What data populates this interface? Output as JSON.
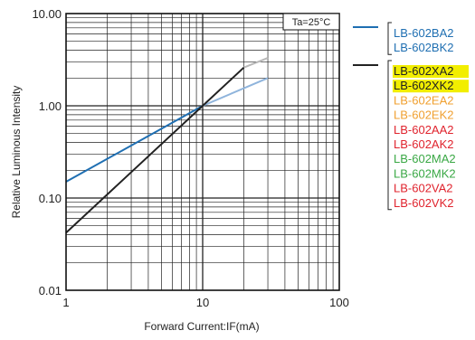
{
  "chart_data": {
    "type": "line",
    "x_scale": "log",
    "y_scale": "log",
    "xlim": [
      1,
      100
    ],
    "ylim": [
      0.01,
      10
    ],
    "xlabel": "Forward Current:IF(mA)",
    "ylabel": "Relative Luminous Intensity",
    "x_ticks": [
      "1",
      "10",
      "100"
    ],
    "y_ticks": [
      "0.01",
      "0.10",
      "1.00",
      "10.00"
    ],
    "annotation": "Ta=25°C",
    "grid": true,
    "series": [
      {
        "color": "#1f6fb2",
        "fade_color": "#8fb4dc",
        "x": [
          1,
          10,
          30
        ],
        "y": [
          0.15,
          1.0,
          2.0
        ],
        "solid_until_x": 10
      },
      {
        "color": "#222222",
        "fade_color": "#b8b8b8",
        "x": [
          1,
          10,
          20,
          30
        ],
        "y": [
          0.042,
          1.0,
          2.6,
          3.3
        ],
        "solid_until_x": 20
      }
    ],
    "legend": [
      {
        "line_color": "#1f6fb2",
        "entries": [
          {
            "label": "LB-602BA2",
            "color": "#1f6fb2",
            "highlight": false
          },
          {
            "label": "LB-602BK2",
            "color": "#1f6fb2",
            "highlight": false
          }
        ]
      },
      {
        "line_color": "#222222",
        "entries": [
          {
            "label": "LB-602XA2",
            "color": "#222222",
            "highlight": true
          },
          {
            "label": "LB-602XK2",
            "color": "#222222",
            "highlight": true
          },
          {
            "label": "LB-602EA2",
            "color": "#f0a030",
            "highlight": false
          },
          {
            "label": "LB-602EK2",
            "color": "#f0a030",
            "highlight": false
          },
          {
            "label": "LB-602AA2",
            "color": "#e0242e",
            "highlight": false
          },
          {
            "label": "LB-602AK2",
            "color": "#e0242e",
            "highlight": false
          },
          {
            "label": "LB-602MA2",
            "color": "#3aa845",
            "highlight": false
          },
          {
            "label": "LB-602MK2",
            "color": "#3aa845",
            "highlight": false
          },
          {
            "label": "LB-602VA2",
            "color": "#e0242e",
            "highlight": false
          },
          {
            "label": "LB-602VK2",
            "color": "#e0242e",
            "highlight": false
          }
        ]
      }
    ],
    "highlight_color": "#f2ee00"
  }
}
